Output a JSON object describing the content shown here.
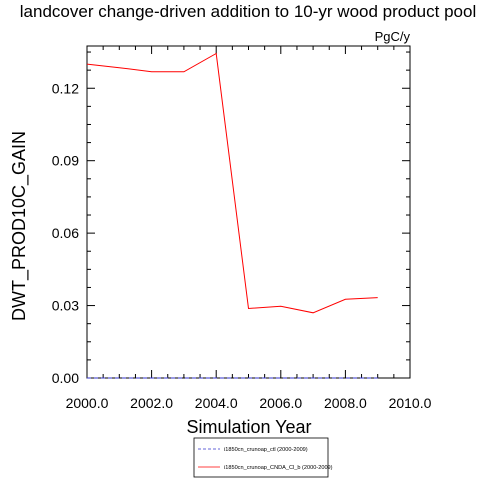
{
  "chart_data": {
    "type": "line",
    "title": "landcover change-driven addition to 10-yr wood product pool",
    "units": "PgC/y",
    "xlabel": "Simulation Year",
    "ylabel": "DWT_PROD10C_GAIN",
    "xlim": [
      2000,
      2010
    ],
    "ylim": [
      0,
      0.1375
    ],
    "x_ticks": [
      "2000.0",
      "2002.0",
      "2004.0",
      "2006.0",
      "2008.0",
      "2010.0"
    ],
    "x_tick_values": [
      2000,
      2002,
      2004,
      2006,
      2008,
      2010
    ],
    "y_ticks": [
      "0.00",
      "0.03",
      "0.06",
      "0.09",
      "0.12"
    ],
    "y_tick_values": [
      0,
      0.03,
      0.06,
      0.09,
      0.12
    ],
    "grid": false,
    "legend_position": "bottom",
    "series": [
      {
        "name": "i1850cn_crunoap_ctl (2000-2009)",
        "color": "#3333cc",
        "dash": "dashed",
        "x": [
          2000,
          2001,
          2002,
          2003,
          2004,
          2005,
          2006,
          2007,
          2008,
          2009
        ],
        "y": [
          0,
          0,
          0,
          0,
          0,
          0,
          0,
          0,
          0,
          0
        ]
      },
      {
        "name": "i1850cn_crunoap_CNDA_Cl_b (2000-2009)",
        "color": "#ff0000",
        "dash": "solid",
        "x": [
          2000,
          2001,
          2002,
          2003,
          2004,
          2005,
          2006,
          2007,
          2008,
          2009
        ],
        "y": [
          0.13,
          0.1285,
          0.1268,
          0.1268,
          0.1344,
          0.0288,
          0.0297,
          0.027,
          0.0326,
          0.0333
        ]
      }
    ]
  }
}
